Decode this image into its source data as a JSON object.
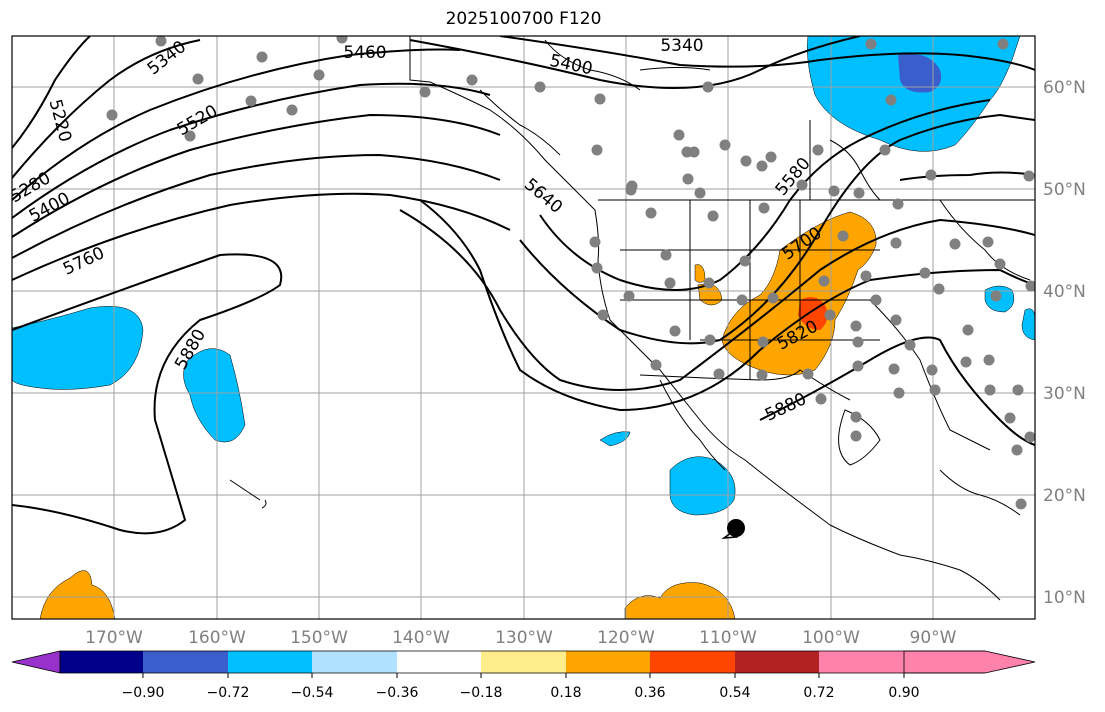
{
  "title": "2025100700 F120",
  "map": {
    "lat_labels": [
      "60°N",
      "50°N",
      "40°N",
      "30°N",
      "20°N",
      "10°N"
    ],
    "lon_labels": [
      "170°W",
      "160°W",
      "150°W",
      "140°W",
      "130°W",
      "120°W",
      "110°W",
      "100°W",
      "90°W"
    ],
    "grid": true,
    "contour_labels": [
      "5340",
      "5460",
      "5400",
      "5340",
      "5220",
      "5520",
      "5280",
      "5400",
      "5640",
      "5580",
      "5760",
      "5700",
      "5880",
      "5820",
      "5880"
    ]
  },
  "colorbar": {
    "tick_labels": [
      "−0.90",
      "−0.72",
      "−0.54",
      "−0.36",
      "−0.18",
      "0.18",
      "0.36",
      "0.54",
      "0.72",
      "0.90"
    ],
    "colors": [
      "#9932cc",
      "#00008b",
      "#3a5fcd",
      "#00bfff",
      "#b0e2ff",
      "#ffffff",
      "#ffec8b",
      "#ffa500",
      "#ff4500",
      "#b22222",
      "#ff82ab"
    ]
  },
  "colors": {
    "land_gray_dots": "#808080",
    "contour": "#000000",
    "grid": "#a0a0a0"
  }
}
